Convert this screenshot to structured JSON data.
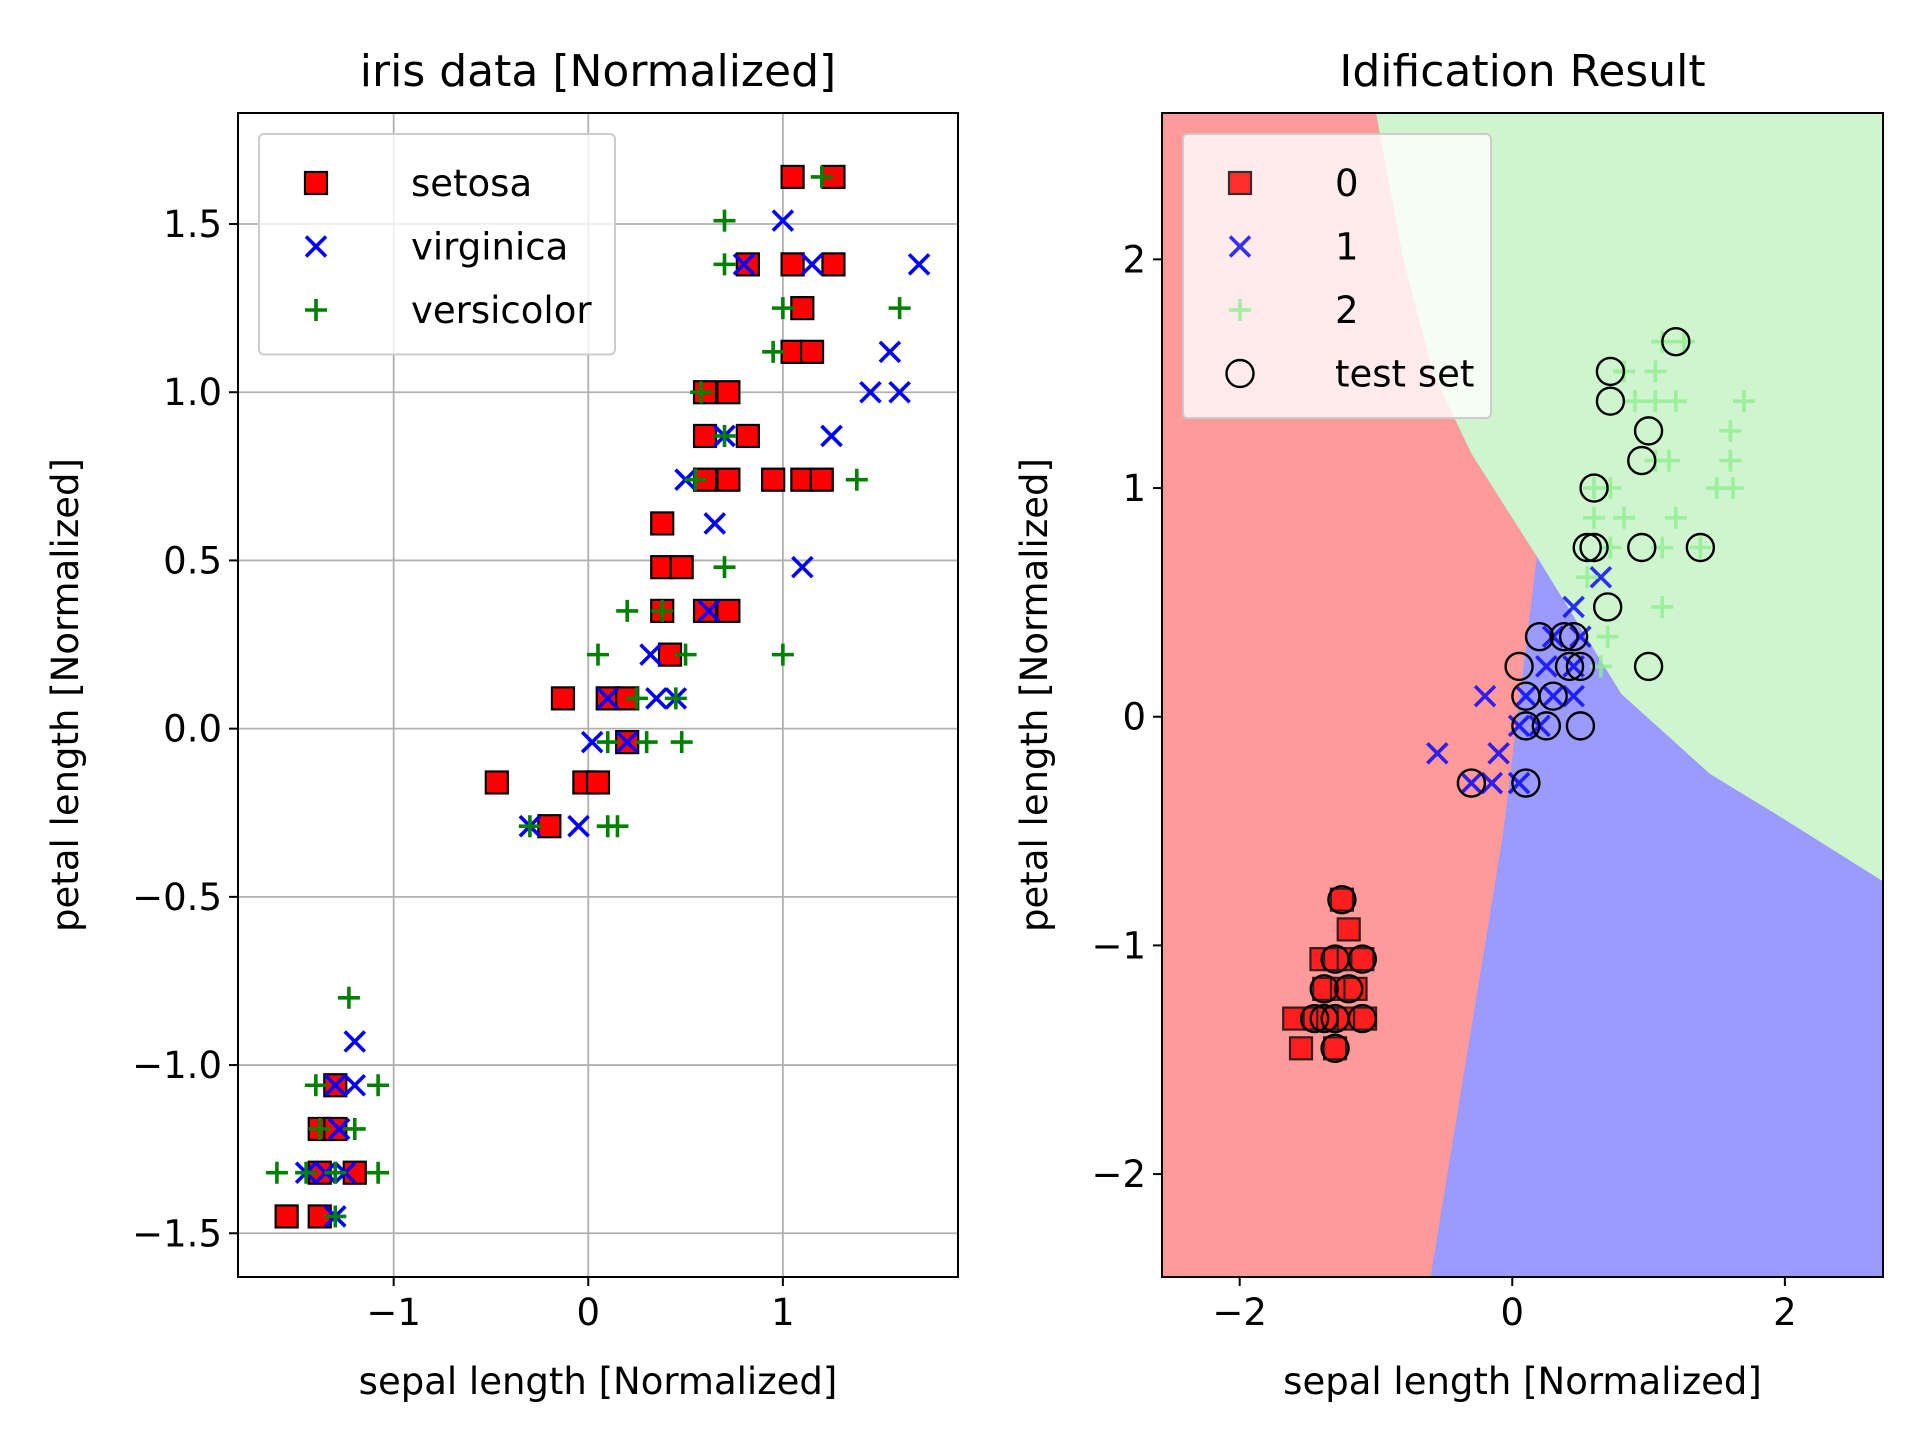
{
  "chart_data": [
    {
      "type": "scatter",
      "title": "iris data [Normalized]",
      "xlabel": "sepal length [Normalized]",
      "ylabel": "petal length [Normalized]",
      "xlim": [
        -1.8,
        1.9
      ],
      "ylim": [
        -1.63,
        1.83
      ],
      "xticks": [
        -1,
        0,
        1
      ],
      "xtick_labels": [
        "−1",
        "0",
        "1"
      ],
      "yticks": [
        -1.5,
        -1.0,
        -0.5,
        0.0,
        0.5,
        1.0,
        1.5
      ],
      "ytick_labels": [
        "−1.5",
        "−1.0",
        "−0.5",
        "0.0",
        "0.5",
        "1.0",
        "1.5"
      ],
      "grid": true,
      "legend_position": "top-left",
      "series": [
        {
          "name": "setosa",
          "marker": "square",
          "color": "#ff0000",
          "edge": "#000000",
          "points": [
            [
              1.05,
              1.64
            ],
            [
              1.26,
              1.64
            ],
            [
              0.82,
              1.38
            ],
            [
              1.05,
              1.38
            ],
            [
              1.26,
              1.38
            ],
            [
              1.1,
              1.25
            ],
            [
              1.05,
              1.12
            ],
            [
              1.15,
              1.12
            ],
            [
              0.6,
              1.0
            ],
            [
              0.72,
              1.0
            ],
            [
              0.6,
              0.87
            ],
            [
              0.82,
              0.87
            ],
            [
              0.6,
              0.74
            ],
            [
              0.72,
              0.74
            ],
            [
              0.95,
              0.74
            ],
            [
              1.1,
              0.74
            ],
            [
              1.2,
              0.74
            ],
            [
              0.38,
              0.61
            ],
            [
              0.38,
              0.48
            ],
            [
              0.48,
              0.48
            ],
            [
              0.38,
              0.35
            ],
            [
              0.6,
              0.35
            ],
            [
              0.72,
              0.35
            ],
            [
              0.42,
              0.22
            ],
            [
              -0.13,
              0.09
            ],
            [
              0.1,
              0.09
            ],
            [
              0.2,
              0.09
            ],
            [
              -0.02,
              -0.16
            ],
            [
              0.05,
              -0.16
            ],
            [
              0.2,
              -0.04
            ],
            [
              -0.47,
              -0.16
            ],
            [
              -0.2,
              -0.29
            ],
            [
              -1.3,
              -1.06
            ],
            [
              -1.38,
              -1.19
            ],
            [
              -1.3,
              -1.19
            ],
            [
              -1.38,
              -1.32
            ],
            [
              -1.2,
              -1.32
            ],
            [
              -1.55,
              -1.45
            ],
            [
              -1.38,
              -1.45
            ]
          ]
        },
        {
          "name": "virginica",
          "marker": "x",
          "color": "#0000ff",
          "points": [
            [
              1.0,
              1.51
            ],
            [
              1.7,
              1.38
            ],
            [
              0.8,
              1.38
            ],
            [
              1.15,
              1.38
            ],
            [
              1.55,
              1.12
            ],
            [
              1.45,
              1.0
            ],
            [
              1.6,
              1.0
            ],
            [
              1.25,
              0.87
            ],
            [
              0.7,
              0.87
            ],
            [
              0.5,
              0.74
            ],
            [
              0.65,
              0.61
            ],
            [
              1.1,
              0.48
            ],
            [
              0.32,
              0.22
            ],
            [
              0.1,
              0.09
            ],
            [
              0.35,
              0.09
            ],
            [
              0.45,
              0.09
            ],
            [
              0.62,
              0.35
            ],
            [
              0.02,
              -0.04
            ],
            [
              0.2,
              -0.04
            ],
            [
              -0.3,
              -0.29
            ],
            [
              -0.05,
              -0.29
            ],
            [
              -1.2,
              -0.93
            ],
            [
              -1.2,
              -1.06
            ],
            [
              -1.3,
              -1.06
            ],
            [
              -1.28,
              -1.19
            ],
            [
              -1.45,
              -1.32
            ],
            [
              -1.35,
              -1.32
            ],
            [
              -1.25,
              -1.32
            ],
            [
              -1.3,
              -1.45
            ]
          ]
        },
        {
          "name": "versicolor",
          "marker": "plus",
          "color": "#008000",
          "points": [
            [
              1.2,
              1.64
            ],
            [
              0.7,
              1.51
            ],
            [
              0.7,
              1.38
            ],
            [
              1.0,
              1.25
            ],
            [
              1.6,
              1.25
            ],
            [
              0.95,
              1.12
            ],
            [
              0.58,
              1.0
            ],
            [
              0.7,
              0.87
            ],
            [
              0.55,
              0.74
            ],
            [
              1.38,
              0.74
            ],
            [
              0.7,
              0.48
            ],
            [
              0.2,
              0.35
            ],
            [
              0.38,
              0.35
            ],
            [
              0.05,
              0.22
            ],
            [
              0.5,
              0.22
            ],
            [
              1.0,
              0.22
            ],
            [
              0.25,
              0.09
            ],
            [
              0.45,
              0.09
            ],
            [
              0.1,
              -0.04
            ],
            [
              0.3,
              -0.04
            ],
            [
              0.48,
              -0.04
            ],
            [
              -0.3,
              -0.29
            ],
            [
              0.1,
              -0.29
            ],
            [
              0.15,
              -0.29
            ],
            [
              -1.23,
              -0.8
            ],
            [
              -1.4,
              -1.06
            ],
            [
              -1.08,
              -1.06
            ],
            [
              -1.38,
              -1.19
            ],
            [
              -1.2,
              -1.19
            ],
            [
              -1.6,
              -1.32
            ],
            [
              -1.45,
              -1.32
            ],
            [
              -1.3,
              -1.32
            ],
            [
              -1.08,
              -1.32
            ],
            [
              -1.3,
              -1.45
            ]
          ]
        }
      ]
    },
    {
      "type": "scatter",
      "title": "Idification Result",
      "xlabel": "sepal length [Normalized]",
      "ylabel": "petal length [Normalized]",
      "xlim": [
        -2.57,
        2.72
      ],
      "ylim": [
        -2.45,
        2.64
      ],
      "xticks": [
        -2,
        0,
        2
      ],
      "xtick_labels": [
        "−2",
        "0",
        "2"
      ],
      "yticks": [
        -2,
        -1,
        0,
        1,
        2
      ],
      "ytick_labels": [
        "−2",
        "−1",
        "0",
        "1",
        "2"
      ],
      "grid": false,
      "legend_position": "top-left",
      "region_colors": {
        "0": "#ff9a9a",
        "1": "#9a9aff",
        "2": "#cef5ce"
      },
      "regions": {
        "class0_boundary": [
          [
            -1.0,
            2.64
          ],
          [
            -0.8,
            2.0
          ],
          [
            -0.58,
            1.5
          ],
          [
            -0.3,
            1.15
          ],
          [
            0.18,
            0.7
          ],
          [
            -0.07,
            -0.52
          ],
          [
            -0.6,
            -2.45
          ]
        ],
        "class1_2_boundary": [
          [
            0.18,
            0.7
          ],
          [
            0.8,
            0.1
          ],
          [
            1.45,
            -0.25
          ],
          [
            2.0,
            -0.45
          ],
          [
            2.72,
            -0.72
          ]
        ]
      },
      "series": [
        {
          "name": "0",
          "marker": "square",
          "color": "#ff0000",
          "edge": "#000000",
          "points": [
            [
              -1.25,
              -0.8
            ],
            [
              -1.2,
              -0.93
            ],
            [
              -1.4,
              -1.06
            ],
            [
              -1.3,
              -1.06
            ],
            [
              -1.2,
              -1.06
            ],
            [
              -1.1,
              -1.06
            ],
            [
              -1.38,
              -1.19
            ],
            [
              -1.25,
              -1.19
            ],
            [
              -1.15,
              -1.19
            ],
            [
              -1.6,
              -1.32
            ],
            [
              -1.45,
              -1.32
            ],
            [
              -1.35,
              -1.32
            ],
            [
              -1.2,
              -1.32
            ],
            [
              -1.08,
              -1.32
            ],
            [
              -1.55,
              -1.45
            ],
            [
              -1.3,
              -1.45
            ]
          ]
        },
        {
          "name": "1",
          "marker": "x",
          "color": "#0000ff",
          "points": [
            [
              0.45,
              0.48
            ],
            [
              0.65,
              0.61
            ],
            [
              0.3,
              0.35
            ],
            [
              0.5,
              0.35
            ],
            [
              0.25,
              0.22
            ],
            [
              0.45,
              0.22
            ],
            [
              -0.2,
              0.09
            ],
            [
              0.1,
              0.09
            ],
            [
              0.3,
              0.09
            ],
            [
              0.45,
              0.09
            ],
            [
              0.05,
              -0.04
            ],
            [
              0.2,
              -0.04
            ],
            [
              -0.1,
              -0.16
            ],
            [
              -0.55,
              -0.16
            ],
            [
              -0.3,
              -0.29
            ],
            [
              -0.15,
              -0.29
            ],
            [
              0.05,
              -0.29
            ]
          ]
        },
        {
          "name": "2",
          "marker": "plus",
          "color": "#90ee90",
          "points": [
            [
              1.1,
              1.64
            ],
            [
              1.26,
              1.64
            ],
            [
              0.82,
              1.51
            ],
            [
              1.05,
              1.51
            ],
            [
              0.9,
              1.38
            ],
            [
              1.05,
              1.38
            ],
            [
              1.2,
              1.38
            ],
            [
              1.7,
              1.38
            ],
            [
              1.6,
              1.25
            ],
            [
              1.05,
              1.12
            ],
            [
              1.15,
              1.12
            ],
            [
              1.6,
              1.12
            ],
            [
              0.6,
              1.0
            ],
            [
              0.72,
              1.0
            ],
            [
              1.5,
              1.0
            ],
            [
              1.62,
              1.0
            ],
            [
              0.6,
              0.87
            ],
            [
              0.82,
              0.87
            ],
            [
              1.2,
              0.87
            ],
            [
              0.72,
              0.74
            ],
            [
              1.1,
              0.74
            ],
            [
              1.38,
              0.74
            ],
            [
              0.55,
              0.61
            ],
            [
              1.1,
              0.48
            ],
            [
              0.7,
              0.35
            ],
            [
              0.65,
              0.22
            ]
          ]
        },
        {
          "name": "test set",
          "marker": "circle-open",
          "color": "#000000",
          "points": [
            [
              1.2,
              1.64
            ],
            [
              0.72,
              1.51
            ],
            [
              0.72,
              1.38
            ],
            [
              1.0,
              1.25
            ],
            [
              0.95,
              1.12
            ],
            [
              0.6,
              1.0
            ],
            [
              0.55,
              0.74
            ],
            [
              0.6,
              0.74
            ],
            [
              0.95,
              0.74
            ],
            [
              1.38,
              0.74
            ],
            [
              0.7,
              0.48
            ],
            [
              0.2,
              0.35
            ],
            [
              0.38,
              0.35
            ],
            [
              0.45,
              0.35
            ],
            [
              1.0,
              0.22
            ],
            [
              0.05,
              0.22
            ],
            [
              0.42,
              0.22
            ],
            [
              0.5,
              0.22
            ],
            [
              0.1,
              0.09
            ],
            [
              0.3,
              0.09
            ],
            [
              0.1,
              -0.04
            ],
            [
              0.25,
              -0.04
            ],
            [
              0.5,
              -0.04
            ],
            [
              -0.3,
              -0.29
            ],
            [
              0.1,
              -0.29
            ],
            [
              -1.25,
              -0.8
            ],
            [
              -1.3,
              -1.06
            ],
            [
              -1.1,
              -1.06
            ],
            [
              -1.38,
              -1.19
            ],
            [
              -1.2,
              -1.19
            ],
            [
              -1.45,
              -1.32
            ],
            [
              -1.38,
              -1.32
            ],
            [
              -1.3,
              -1.32
            ],
            [
              -1.1,
              -1.32
            ],
            [
              -1.3,
              -1.45
            ]
          ]
        }
      ]
    }
  ]
}
